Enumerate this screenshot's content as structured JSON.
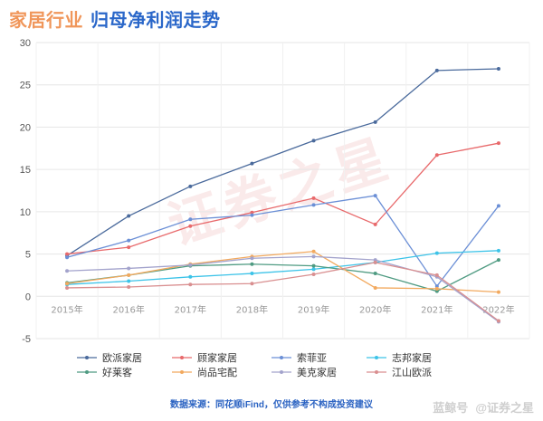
{
  "header": {
    "title_part1": "家居行业",
    "title_part2": "归母净利润走势"
  },
  "footer": {
    "source": "数据来源：同花顺iFind，仅供参考不构成投资建议",
    "brand1": "蓝鲸号",
    "brand2": "@证券之星"
  },
  "stamp_text": "证券之星",
  "chart_data": {
    "type": "line",
    "title": "家居行业 归母净利润走势",
    "x": [
      "2015年",
      "2016年",
      "2017年",
      "2018年",
      "2019年",
      "2020年",
      "2021年",
      "2022年"
    ],
    "ylim": [
      -5,
      30
    ],
    "yticks": [
      -5,
      0,
      5,
      10,
      15,
      20,
      25,
      30
    ],
    "grid": true,
    "legend_position": "bottom",
    "series": [
      {
        "name": "欧派家居",
        "color": "#4a6a9c",
        "values": [
          4.8,
          9.5,
          13.0,
          15.7,
          18.4,
          20.6,
          26.7,
          26.9
        ]
      },
      {
        "name": "顾家家居",
        "color": "#e8696b",
        "values": [
          5.0,
          5.8,
          8.3,
          9.9,
          11.6,
          8.5,
          16.7,
          18.1
        ]
      },
      {
        "name": "索菲亚",
        "color": "#6b8fd6",
        "values": [
          4.6,
          6.6,
          9.1,
          9.6,
          10.8,
          11.9,
          1.2,
          10.7
        ]
      },
      {
        "name": "志邦家居",
        "color": "#3cc3e8",
        "values": [
          1.4,
          1.8,
          2.3,
          2.7,
          3.2,
          4.0,
          5.1,
          5.4
        ]
      },
      {
        "name": "好莱客",
        "color": "#4f9b82",
        "values": [
          1.6,
          2.5,
          3.6,
          3.8,
          3.6,
          2.7,
          0.6,
          4.3
        ]
      },
      {
        "name": "尚品宅配",
        "color": "#f2a95e",
        "values": [
          1.5,
          2.5,
          3.8,
          4.7,
          5.3,
          1.0,
          0.9,
          0.5
        ]
      },
      {
        "name": "美克家居",
        "color": "#a3a3cc",
        "values": [
          3.0,
          3.3,
          3.7,
          4.5,
          4.7,
          4.3,
          2.3,
          -3.0
        ]
      },
      {
        "name": "江山欧派",
        "color": "#d98f90",
        "values": [
          1.0,
          1.1,
          1.4,
          1.5,
          2.6,
          4.0,
          2.5,
          -2.9
        ]
      }
    ]
  }
}
